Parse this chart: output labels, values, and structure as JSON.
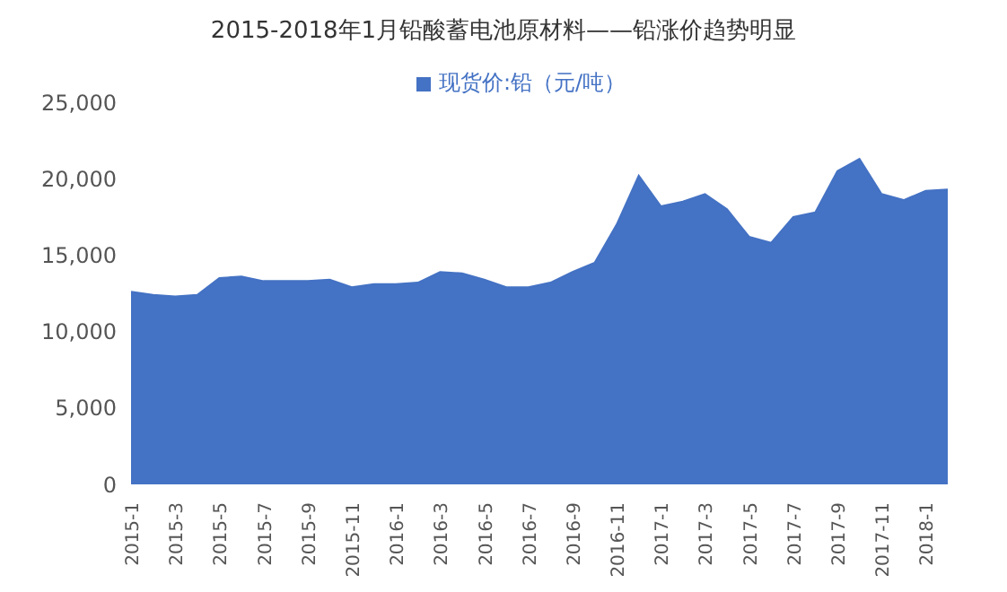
{
  "chart_data": {
    "type": "area",
    "title": "2015-2018年1月铅酸蓄电池原材料——铅涨价趋势明显",
    "categories": [
      "2015-1",
      null,
      "2015-3",
      null,
      "2015-5",
      null,
      "2015-7",
      null,
      "2015-9",
      null,
      "2015-11",
      null,
      "2016-1",
      null,
      "2016-3",
      null,
      "2016-5",
      null,
      "2016-7",
      null,
      "2016-9",
      null,
      "2016-11",
      null,
      "2017-1",
      null,
      "2017-3",
      null,
      "2017-5",
      null,
      "2017-7",
      null,
      "2017-9",
      null,
      "2017-11",
      null,
      "2018-1",
      null
    ],
    "series": [
      {
        "name": "现货价:铅（元/吨）",
        "color": "#4472c4",
        "values": [
          12600,
          12400,
          12300,
          12400,
          13500,
          13600,
          13300,
          13300,
          13300,
          13400,
          12900,
          13100,
          13100,
          13200,
          13900,
          13800,
          13400,
          12900,
          12900,
          13200,
          13900,
          14500,
          17000,
          20200,
          18200,
          18500,
          19000,
          18000,
          16200,
          15800,
          17500,
          17800,
          20500,
          21300,
          19000,
          18600,
          19200,
          19300
        ]
      }
    ],
    "ylim": [
      0,
      25000
    ],
    "yticks": [
      {
        "value": 0,
        "label": "0"
      },
      {
        "value": 5000,
        "label": "5,000"
      },
      {
        "value": 10000,
        "label": "10,000"
      },
      {
        "value": 15000,
        "label": "15,000"
      },
      {
        "value": 20000,
        "label": "20,000"
      },
      {
        "value": 25000,
        "label": "25,000"
      }
    ],
    "grid": false,
    "legend": "top"
  }
}
